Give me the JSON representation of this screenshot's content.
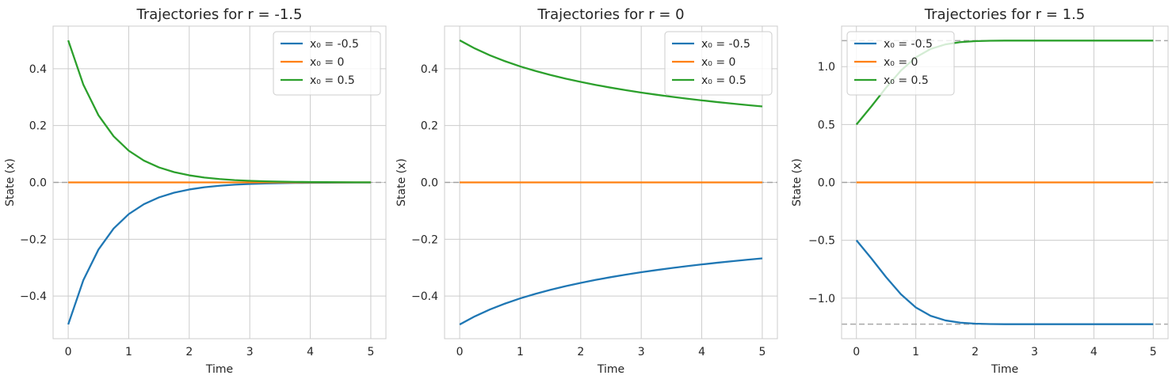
{
  "chart_data": [
    {
      "type": "line",
      "title": "Trajectories for r = -1.5",
      "xlabel": "Time",
      "ylabel": "State (x)",
      "xlim": [
        -0.25,
        5.25
      ],
      "ylim": [
        -0.55,
        0.55
      ],
      "xticks": [
        0,
        1,
        2,
        3,
        4,
        5
      ],
      "xtick_labels": [
        "0",
        "1",
        "2",
        "3",
        "4",
        "5"
      ],
      "yticks": [
        -0.4,
        -0.2,
        0.0,
        0.2,
        0.4
      ],
      "ytick_labels": [
        "−0.4",
        "−0.2",
        "0.0",
        "0.2",
        "0.4"
      ],
      "grid": true,
      "legend_position": "top-right",
      "reference_lines": [
        0
      ],
      "x": [
        0,
        0.25,
        0.5,
        0.75,
        1,
        1.25,
        1.5,
        1.75,
        2,
        2.25,
        2.5,
        2.75,
        3,
        3.25,
        3.5,
        3.75,
        4,
        4.25,
        4.5,
        4.75,
        5
      ],
      "series": [
        {
          "name": "x₀ = -0.5",
          "color": "#1f77b4",
          "values": [
            -0.5,
            -0.3439,
            -0.2362,
            -0.1623,
            -0.1116,
            -0.0767,
            -0.0527,
            -0.0362,
            -0.0249,
            -0.0171,
            -0.0118,
            -0.0081,
            -0.0056,
            -0.0038,
            -0.0026,
            -0.0018,
            -0.0012,
            -0.0009,
            -0.0006,
            -0.0004,
            -0.0003
          ]
        },
        {
          "name": "x₀ = 0",
          "color": "#ff7f0e",
          "values": [
            0,
            0,
            0,
            0,
            0,
            0,
            0,
            0,
            0,
            0,
            0,
            0,
            0,
            0,
            0,
            0,
            0,
            0,
            0,
            0,
            0
          ]
        },
        {
          "name": "x₀ = 0.5",
          "color": "#2ca02c",
          "values": [
            0.5,
            0.3439,
            0.2362,
            0.1623,
            0.1116,
            0.0767,
            0.0527,
            0.0362,
            0.0249,
            0.0171,
            0.0118,
            0.0081,
            0.0056,
            0.0038,
            0.0026,
            0.0018,
            0.0012,
            0.0009,
            0.0006,
            0.0004,
            0.0003
          ]
        }
      ]
    },
    {
      "type": "line",
      "title": "Trajectories for r = 0",
      "xlabel": "Time",
      "ylabel": "State (x)",
      "xlim": [
        -0.25,
        5.25
      ],
      "ylim": [
        -0.55,
        0.55
      ],
      "xticks": [
        0,
        1,
        2,
        3,
        4,
        5
      ],
      "xtick_labels": [
        "0",
        "1",
        "2",
        "3",
        "4",
        "5"
      ],
      "yticks": [
        -0.4,
        -0.2,
        0.0,
        0.2,
        0.4
      ],
      "ytick_labels": [
        "−0.4",
        "−0.2",
        "0.0",
        "0.2",
        "0.4"
      ],
      "grid": true,
      "legend_position": "top-right",
      "reference_lines": [
        0
      ],
      "x": [
        0,
        0.25,
        0.5,
        0.75,
        1,
        1.25,
        1.5,
        1.75,
        2,
        2.25,
        2.5,
        2.75,
        3,
        3.25,
        3.5,
        3.75,
        4,
        4.25,
        4.5,
        4.75,
        5
      ],
      "series": [
        {
          "name": "x₀ = -0.5",
          "color": "#1f77b4",
          "values": [
            -0.5,
            -0.4714,
            -0.4472,
            -0.4264,
            -0.4082,
            -0.3922,
            -0.378,
            -0.3651,
            -0.3536,
            -0.343,
            -0.3333,
            -0.3244,
            -0.3162,
            -0.3086,
            -0.3015,
            -0.2949,
            -0.2887,
            -0.2828,
            -0.2774,
            -0.2722,
            -0.2673
          ]
        },
        {
          "name": "x₀ = 0",
          "color": "#ff7f0e",
          "values": [
            0,
            0,
            0,
            0,
            0,
            0,
            0,
            0,
            0,
            0,
            0,
            0,
            0,
            0,
            0,
            0,
            0,
            0,
            0,
            0,
            0
          ]
        },
        {
          "name": "x₀ = 0.5",
          "color": "#2ca02c",
          "values": [
            0.5,
            0.4714,
            0.4472,
            0.4264,
            0.4082,
            0.3922,
            0.378,
            0.3651,
            0.3536,
            0.343,
            0.3333,
            0.3244,
            0.3162,
            0.3086,
            0.3015,
            0.2949,
            0.2887,
            0.2828,
            0.2774,
            0.2722,
            0.2673
          ]
        }
      ]
    },
    {
      "type": "line",
      "title": "Trajectories for r = 1.5",
      "xlabel": "Time",
      "ylabel": "State (x)",
      "xlim": [
        -0.25,
        5.25
      ],
      "ylim": [
        -1.35,
        1.35
      ],
      "xticks": [
        0,
        1,
        2,
        3,
        4,
        5
      ],
      "xtick_labels": [
        "0",
        "1",
        "2",
        "3",
        "4",
        "5"
      ],
      "yticks": [
        -1.0,
        -0.5,
        0.0,
        0.5,
        1.0
      ],
      "ytick_labels": [
        "−1.0",
        "−0.5",
        "0.0",
        "0.5",
        "1.0"
      ],
      "grid": true,
      "legend_position": "top-left",
      "reference_lines": [
        -1.2247,
        0,
        1.2247
      ],
      "x": [
        0,
        0.25,
        0.5,
        0.75,
        1,
        1.25,
        1.5,
        1.75,
        2,
        2.25,
        2.5,
        2.75,
        3,
        3.25,
        3.5,
        3.75,
        4,
        4.25,
        4.5,
        4.75,
        5
      ],
      "series": [
        {
          "name": "x₀ = -0.5",
          "color": "#1f77b4",
          "values": [
            -0.5,
            -0.6553,
            -0.8184,
            -0.9666,
            -1.0801,
            -1.1526,
            -1.1924,
            -1.2115,
            -1.22,
            -1.2235,
            -1.2247,
            -1.2247,
            -1.2247,
            -1.2247,
            -1.2247,
            -1.2247,
            -1.2247,
            -1.2247,
            -1.2247,
            -1.2247,
            -1.2247
          ]
        },
        {
          "name": "x₀ = 0",
          "color": "#ff7f0e",
          "values": [
            0,
            0,
            0,
            0,
            0,
            0,
            0,
            0,
            0,
            0,
            0,
            0,
            0,
            0,
            0,
            0,
            0,
            0,
            0,
            0,
            0
          ]
        },
        {
          "name": "x₀ = 0.5",
          "color": "#2ca02c",
          "values": [
            0.5,
            0.6553,
            0.8184,
            0.9666,
            1.0801,
            1.1526,
            1.1924,
            1.2115,
            1.22,
            1.2235,
            1.2247,
            1.2247,
            1.2247,
            1.2247,
            1.2247,
            1.2247,
            1.2247,
            1.2247,
            1.2247,
            1.2247,
            1.2247
          ]
        }
      ]
    }
  ]
}
